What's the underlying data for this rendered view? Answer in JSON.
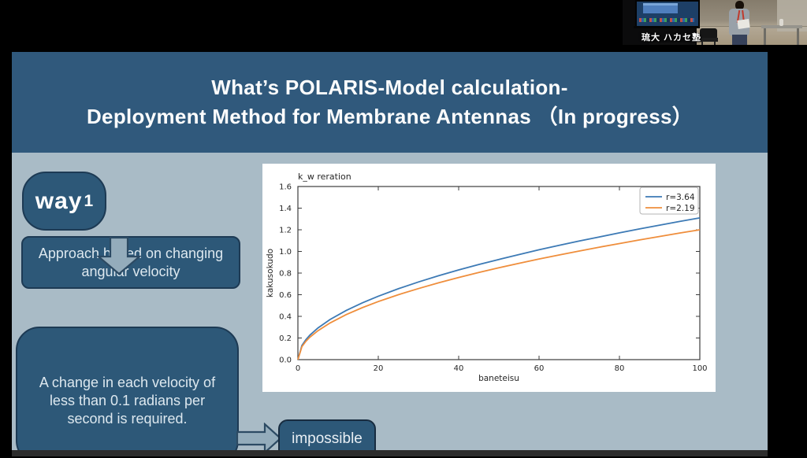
{
  "colors": {
    "banner": "#30597c",
    "body_bg": "#a9bbc6",
    "box_fill": "#2d5878",
    "box_border": "#1d3a54",
    "arrow_fill": "#94acbb",
    "arrow_border": "#2c4a63",
    "text_light": "#dde8ef"
  },
  "webcam": {
    "label": "琉大 ハカセ塾"
  },
  "slide": {
    "title_line1": "What’s POLARIS-Model calculation-",
    "title_line2": "Deployment Method for Membrane Antennas （In progress）",
    "way_label": "way",
    "way_number": "1",
    "approach_box": [
      "Approach based on changing",
      "angular velocity"
    ],
    "requirement_box": [
      "A change in each velocity of",
      "less than 0.1 radians per",
      "second is required."
    ],
    "impossible_label": "impossible"
  },
  "chart_data": {
    "type": "line",
    "title": "k_w reration",
    "xlabel": "baneteisu",
    "ylabel": "kakusokudo",
    "xlim": [
      0,
      100
    ],
    "ylim": [
      0,
      1.6
    ],
    "x_ticks": [
      "0",
      "20",
      "40",
      "60",
      "80",
      "100"
    ],
    "y_ticks": [
      "0.0",
      "0.2",
      "0.4",
      "0.6",
      "0.8",
      "1.0",
      "1.2",
      "1.4",
      "1.6"
    ],
    "grid": false,
    "legend_position": "upper right",
    "x": [
      0,
      1,
      2,
      3,
      5,
      8,
      12,
      16,
      20,
      25,
      30,
      35,
      40,
      45,
      50,
      55,
      60,
      65,
      70,
      75,
      80,
      85,
      90,
      95,
      100
    ],
    "series": [
      {
        "name": "r=3.64",
        "color": "#3d7ab5",
        "values": [
          0,
          0.131,
          0.185,
          0.227,
          0.293,
          0.371,
          0.454,
          0.524,
          0.586,
          0.655,
          0.718,
          0.775,
          0.829,
          0.879,
          0.926,
          0.971,
          1.015,
          1.056,
          1.096,
          1.134,
          1.172,
          1.208,
          1.243,
          1.277,
          1.31
        ]
      },
      {
        "name": "r=2.19",
        "color": "#ef8e3c",
        "values": [
          0,
          0.12,
          0.17,
          0.208,
          0.268,
          0.339,
          0.416,
          0.48,
          0.537,
          0.6,
          0.657,
          0.71,
          0.759,
          0.805,
          0.849,
          0.89,
          0.93,
          0.967,
          1.004,
          1.039,
          1.073,
          1.106,
          1.138,
          1.17,
          1.2
        ]
      }
    ]
  }
}
